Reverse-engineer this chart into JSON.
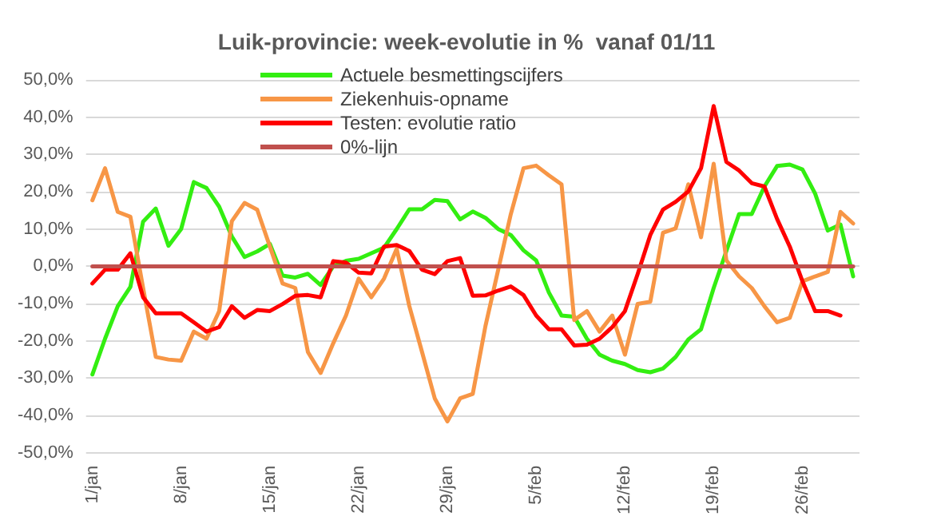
{
  "chart_data": {
    "type": "line",
    "title": "Luik-provincie: week-evolutie in %  vanaf 01/11",
    "categories": [
      "1/jan",
      null,
      null,
      null,
      null,
      null,
      null,
      "8/jan",
      null,
      null,
      null,
      null,
      null,
      null,
      "15/jan",
      null,
      null,
      null,
      null,
      null,
      null,
      "22/jan",
      null,
      null,
      null,
      null,
      null,
      null,
      "29/jan",
      null,
      null,
      null,
      null,
      null,
      null,
      "5/feb",
      null,
      null,
      null,
      null,
      null,
      null,
      "12/feb",
      null,
      null,
      null,
      null,
      null,
      null,
      "19/feb",
      null,
      null,
      null,
      null,
      null,
      null,
      "26/feb",
      null,
      null,
      null,
      null
    ],
    "series": [
      {
        "name": "Actuele besmettingscijfers",
        "color": "#33ee11",
        "values": [
          -29,
          -19.4,
          -10.7,
          -5.5,
          12,
          15.5,
          5.5,
          10,
          22.6,
          21,
          16,
          8,
          2.5,
          4,
          6,
          -2.5,
          -3,
          -2,
          -5,
          0,
          1.5,
          2,
          3.5,
          5,
          10,
          15.3,
          15.3,
          17.8,
          17.5,
          12.6,
          14.7,
          13,
          10,
          8.4,
          4.3,
          1.6,
          -7,
          -13.2,
          -13.5,
          -19.4,
          -23.7,
          -25.3,
          -26.2,
          -27.8,
          -28.4,
          -27.4,
          -24.3,
          -19.6,
          -16.9,
          -5.8,
          4.1,
          14,
          14,
          21.4,
          26.9,
          27.3,
          26,
          19.5,
          9.6,
          11.2,
          -2.7
        ]
      },
      {
        "name": "Ziekenhuis-opname",
        "color": "#f79646",
        "values": [
          17.7,
          26.3,
          14.6,
          13.3,
          -5.8,
          -24.3,
          -25,
          -25.3,
          -17.5,
          -19.4,
          -12,
          12.1,
          17,
          15.2,
          5.3,
          -4.6,
          -5.8,
          -23,
          -28.6,
          -20.6,
          -13.2,
          -3.3,
          -8.3,
          -3.3,
          4.7,
          -10.7,
          -23,
          -35.4,
          -41.6,
          -35.4,
          -34.2,
          -16,
          -1,
          14,
          26.3,
          27,
          24.4,
          22,
          -14.4,
          -12,
          -17.5,
          -13.2,
          -23.7,
          -10.1,
          -9.5,
          9,
          10.2,
          22,
          7.8,
          27.5,
          1.6,
          -2.7,
          -5.8,
          -10.7,
          -15,
          -13.8,
          -4,
          -2.7,
          -1.5,
          14.6,
          11.5
        ]
      },
      {
        "name": "Testen: evolutie ratio",
        "color": "#ff0000",
        "values": [
          -4.6,
          -0.9,
          -0.9,
          3.5,
          -8.3,
          -12.6,
          -12.6,
          -12.6,
          -15,
          -17.5,
          -16.3,
          -10.7,
          -13.8,
          -11.7,
          -12,
          -10.1,
          -7.9,
          -7.7,
          -8.3,
          1.4,
          1,
          -1.7,
          -1.9,
          5.3,
          5.7,
          4.1,
          -0.9,
          -2.1,
          1.4,
          2.2,
          -7.9,
          -7.8,
          -6.5,
          -5.4,
          -7.7,
          -13.2,
          -16.9,
          -16.9,
          -21.2,
          -21,
          -19.4,
          -16.3,
          -12,
          -2.1,
          8.4,
          15.2,
          17.3,
          20.1,
          26.3,
          43,
          28,
          25.7,
          22.3,
          21.4,
          12.7,
          5.3,
          -4,
          -12,
          -12,
          -13.2,
          null
        ]
      },
      {
        "name": "0%-lijn",
        "color": "#c0504d",
        "values": [
          0,
          0,
          0,
          0,
          0,
          0,
          0,
          0,
          0,
          0,
          0,
          0,
          0,
          0,
          0,
          0,
          0,
          0,
          0,
          0,
          0,
          0,
          0,
          0,
          0,
          0,
          0,
          0,
          0,
          0,
          0,
          0,
          0,
          0,
          0,
          0,
          0,
          0,
          0,
          0,
          0,
          0,
          0,
          0,
          0,
          0,
          0,
          0,
          0,
          0,
          0,
          0,
          0,
          0,
          0,
          0,
          0,
          0,
          0,
          0,
          0
        ]
      }
    ],
    "ylim": [
      -50,
      50
    ],
    "yticks": [
      {
        "value": -50,
        "label": "-50,0%"
      },
      {
        "value": -40,
        "label": "-40,0%"
      },
      {
        "value": -30,
        "label": "-30,0%"
      },
      {
        "value": -20,
        "label": "-20,0%"
      },
      {
        "value": -10,
        "label": "-10,0%"
      },
      {
        "value": 0,
        "label": "0,0%"
      },
      {
        "value": 10,
        "label": "10,0%"
      },
      {
        "value": 20,
        "label": "20,0%"
      },
      {
        "value": 30,
        "label": "30,0%"
      },
      {
        "value": 40,
        "label": "40,0%"
      },
      {
        "value": 50,
        "label": "50,0%"
      }
    ],
    "grid": "y",
    "legend": "top left",
    "marker": "none",
    "line_style": "solid"
  }
}
